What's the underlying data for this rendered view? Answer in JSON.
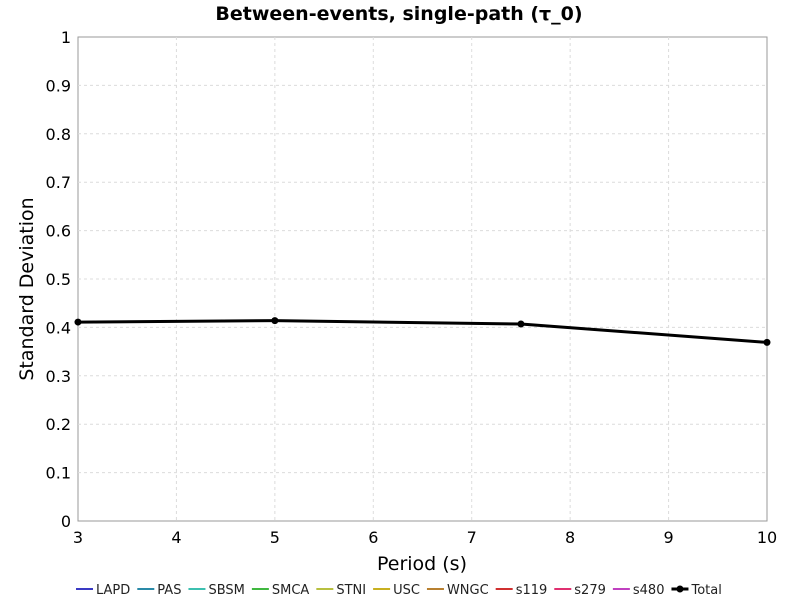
{
  "chart_data": {
    "type": "line",
    "title": "Between-events, single-path (τ_0)",
    "xlabel": "Period (s)",
    "ylabel": "Standard Deviation",
    "xlim": [
      3,
      10
    ],
    "ylim": [
      0,
      1
    ],
    "x_ticks": [
      3,
      4,
      5,
      6,
      7,
      8,
      9,
      10
    ],
    "y_ticks": [
      0,
      0.1,
      0.2,
      0.3,
      0.4,
      0.5,
      0.6,
      0.7,
      0.8,
      0.9,
      1
    ],
    "grid": true,
    "legend_position": "bottom",
    "series": [
      {
        "name": "LAPD",
        "color": "#3a3ac4",
        "values": []
      },
      {
        "name": "PAS",
        "color": "#2a8aa8",
        "values": []
      },
      {
        "name": "SBSM",
        "color": "#3cc0b0",
        "values": []
      },
      {
        "name": "SMCA",
        "color": "#40b840",
        "values": []
      },
      {
        "name": "STNI",
        "color": "#b8c040",
        "values": []
      },
      {
        "name": "USC",
        "color": "#c8b020",
        "values": []
      },
      {
        "name": "WNGC",
        "color": "#b88030",
        "values": []
      },
      {
        "name": "s119",
        "color": "#d03030",
        "values": []
      },
      {
        "name": "s279",
        "color": "#e03070",
        "values": []
      },
      {
        "name": "s480",
        "color": "#c040c0",
        "values": []
      },
      {
        "name": "Total",
        "color": "#000000",
        "markers": true,
        "x": [
          3,
          5,
          7.5,
          10
        ],
        "values": [
          0.411,
          0.414,
          0.407,
          0.369
        ]
      }
    ]
  }
}
